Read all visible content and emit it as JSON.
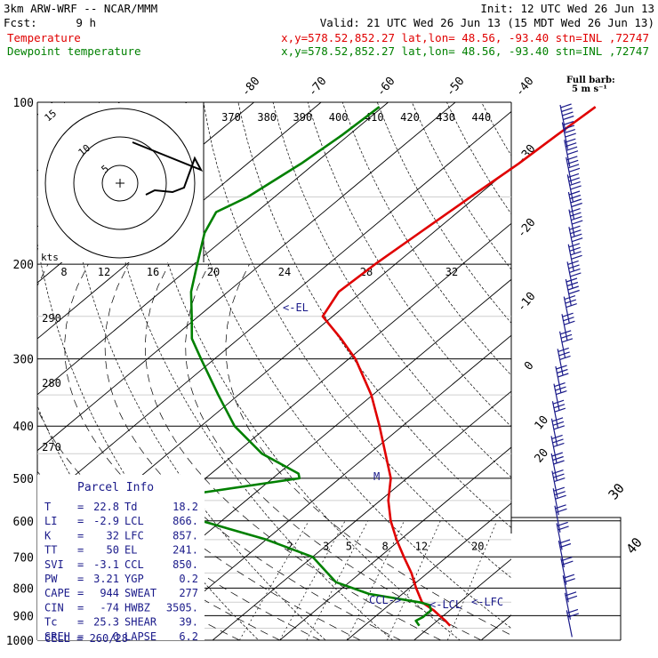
{
  "header": {
    "title": "3km ARW-WRF -- NCAR/MMM",
    "init": "Init: 12 UTC Wed 26 Jun 13",
    "fcst_label": "Fcst:",
    "fcst_value": "9 h",
    "valid": "Valid: 21 UTC Wed 26 Jun 13 (15 MDT Wed 26 Jun 13)"
  },
  "legend": [
    {
      "name": "Temperature",
      "info": "x,y=578.52,852.27   lat,lon= 48.56, -93.40   stn=INL ,72747",
      "color": "#e00000"
    },
    {
      "name": "Dewpoint temperature",
      "info": "x,y=578.52,852.27   lat,lon= 48.56, -93.40   stn=INL ,72747",
      "color": "#008000"
    }
  ],
  "barb_key": {
    "line1": "Full barb:",
    "line2": "5 m s⁻¹"
  },
  "chart_data": {
    "type": "line",
    "subtype": "skew-T log-p sounding",
    "y_axis": {
      "label": "pressure (hPa)",
      "ticks": [
        100,
        200,
        300,
        400,
        500,
        600,
        700,
        800,
        900,
        1000
      ],
      "scale": "log",
      "range": [
        1000,
        100
      ]
    },
    "isotherm_labels": [
      -80,
      -70,
      -60,
      -50,
      -40,
      -30,
      -20,
      -10,
      0,
      10,
      20,
      30,
      40
    ],
    "theta_e_labels": [
      370,
      380,
      390,
      400,
      410,
      420,
      430,
      440
    ],
    "dry_adiabat_labels": [
      290,
      280,
      270
    ],
    "mixing_ratio_labels": [
      2,
      3,
      5,
      8,
      12,
      20
    ],
    "hodograph": {
      "speed_axis_label": "kts",
      "speed_labels": [
        8,
        12,
        16,
        20,
        24,
        28,
        32
      ],
      "ring_labels": [
        5,
        10,
        15
      ]
    },
    "series": [
      {
        "name": "Temperature",
        "color": "#e00000",
        "points": [
          [
            940,
            22.8
          ],
          [
            920,
            21.2
          ],
          [
            900,
            19.4
          ],
          [
            880,
            17.6
          ],
          [
            850,
            14.4
          ],
          [
            800,
            11.0
          ],
          [
            750,
            7.6
          ],
          [
            700,
            3.6
          ],
          [
            650,
            -0.6
          ],
          [
            600,
            -4.8
          ],
          [
            550,
            -8.8
          ],
          [
            500,
            -12.4
          ],
          [
            450,
            -17.6
          ],
          [
            400,
            -23.4
          ],
          [
            350,
            -30.2
          ],
          [
            300,
            -39.0
          ],
          [
            275,
            -44.8
          ],
          [
            250,
            -51.5
          ],
          [
            225,
            -53.5
          ],
          [
            200,
            -53.0
          ],
          [
            175,
            -52.0
          ],
          [
            150,
            -50.8
          ],
          [
            130,
            -49.6
          ],
          [
            115,
            -49.0
          ],
          [
            102,
            -48.3
          ]
        ]
      },
      {
        "name": "Dewpoint temperature",
        "color": "#008000",
        "points": [
          [
            940,
            18.2
          ],
          [
            920,
            16.8
          ],
          [
            905,
            17.2
          ],
          [
            880,
            17.2
          ],
          [
            860,
            16.0
          ],
          [
            850,
            14.0
          ],
          [
            820,
            5.0
          ],
          [
            780,
            -2.0
          ],
          [
            700,
            -10.0
          ],
          [
            650,
            -20.0
          ],
          [
            600,
            -33.0
          ],
          [
            570,
            -46.0
          ],
          [
            560,
            -52.0
          ],
          [
            540,
            -41.0
          ],
          [
            500,
            -26.0
          ],
          [
            490,
            -27.0
          ],
          [
            450,
            -36.0
          ],
          [
            400,
            -45.0
          ],
          [
            350,
            -53.0
          ],
          [
            300,
            -62.0
          ],
          [
            275,
            -67.0
          ],
          [
            250,
            -71.0
          ],
          [
            225,
            -75.5
          ],
          [
            200,
            -79.5
          ],
          [
            175,
            -84.0
          ],
          [
            160,
            -86.0
          ],
          [
            150,
            -84.0
          ],
          [
            130,
            -82.0
          ],
          [
            115,
            -81.0
          ],
          [
            102,
            -80.5
          ]
        ]
      }
    ],
    "annotations": [
      {
        "text": "<-EL",
        "p": 241
      },
      {
        "text": "CCL->",
        "p": 850
      },
      {
        "text": "<-LCL",
        "p": 866
      },
      {
        "text": "<-LFC",
        "p": 857
      },
      {
        "text": "M",
        "p": 500
      }
    ],
    "corner_labels": [
      30,
      40
    ]
  },
  "parcel_info": {
    "title": "Parcel Info",
    "rows": [
      {
        "l1": "T",
        "v1": "22.8",
        "l2": "Td",
        "v2": "18.2"
      },
      {
        "l1": "LI",
        "v1": "-2.9",
        "l2": "LCL",
        "v2": "866."
      },
      {
        "l1": "K",
        "v1": "32",
        "l2": "LFC",
        "v2": "857."
      },
      {
        "l1": "TT",
        "v1": "50",
        "l2": "EL",
        "v2": "241."
      },
      {
        "l1": "SVI",
        "v1": "-3.1",
        "l2": "CCL",
        "v2": "850."
      },
      {
        "l1": "PW",
        "v1": "3.21",
        "l2": "YGP",
        "v2": "0.2"
      },
      {
        "l1": "CAPE",
        "v1": "944",
        "l2": "SWEAT",
        "v2": "277"
      },
      {
        "l1": "CIN",
        "v1": "-74",
        "l2": "HWBZ",
        "v2": "3505."
      },
      {
        "l1": "Tc",
        "v1": "25.3",
        "l2": "SHEAR",
        "v2": "39."
      },
      {
        "l1": "SREH",
        "v1": "0",
        "l2": "LAPSE",
        "v2": "6.2"
      }
    ],
    "cell": "CELL = 260/28"
  }
}
